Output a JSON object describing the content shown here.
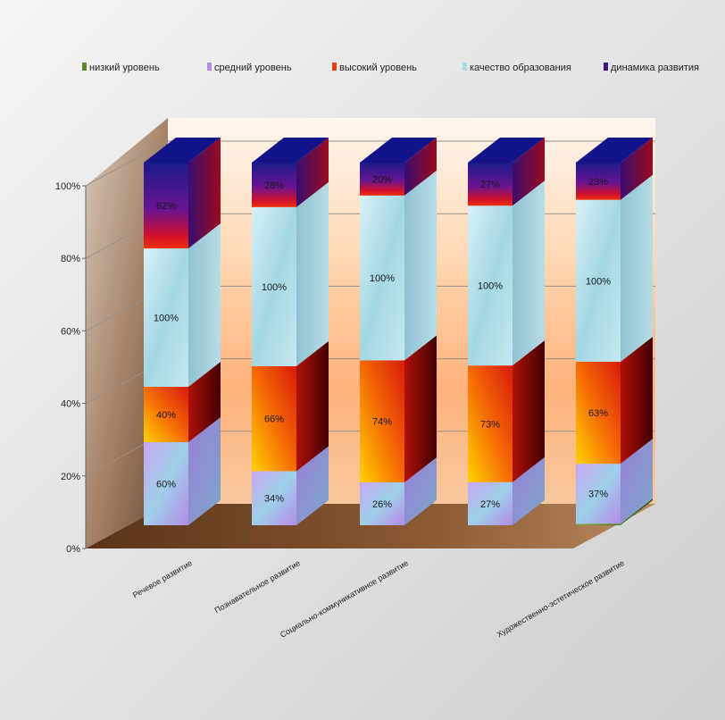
{
  "chart_data": {
    "type": "bar",
    "stacked": "percent",
    "three_d": true,
    "categories": [
      "Речевое развитие",
      "Познавательное развитие",
      "Социально-коммуникативное развитие",
      "",
      "Художественно-эстетическое развитие"
    ],
    "series": [
      {
        "name": "низкий уровень",
        "values": [
          0,
          0,
          0,
          0,
          1
        ],
        "labels": [
          "",
          "",
          "",
          "",
          ""
        ],
        "color": "#5a8a2a"
      },
      {
        "name": "средний уровень",
        "values": [
          60,
          34,
          26,
          27,
          37
        ],
        "labels": [
          "60%",
          "34%",
          "26%",
          "27%",
          "37%"
        ],
        "color": "#b08ce6"
      },
      {
        "name": "высокий уровень",
        "values": [
          40,
          66,
          74,
          73,
          63
        ],
        "labels": [
          "40%",
          "66%",
          "74%",
          "73%",
          "63%"
        ],
        "color": "#e8400a"
      },
      {
        "name": "качество образования",
        "values": [
          100,
          100,
          100,
          100,
          100
        ],
        "labels": [
          "100%",
          "100%",
          "100%",
          "100%",
          "100%"
        ],
        "color": "#a9dbe6"
      },
      {
        "name": "динамика развития",
        "values": [
          62,
          28,
          20,
          27,
          23
        ],
        "labels": [
          "62%",
          "28%",
          "20%",
          "27%",
          "23%"
        ],
        "color": "#4a0f8a"
      }
    ],
    "y_ticks": [
      "0%",
      "20%",
      "40%",
      "60%",
      "80%",
      "100%"
    ],
    "ylim": [
      0,
      100
    ],
    "grid": true,
    "legend_position": "top"
  }
}
